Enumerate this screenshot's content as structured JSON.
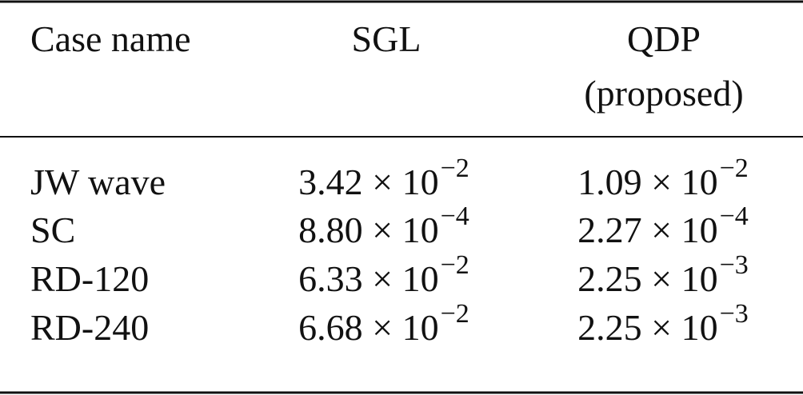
{
  "table": {
    "header": {
      "case": "Case name",
      "sgl": "SGL",
      "qdp": [
        "QDP",
        "(proposed)"
      ]
    },
    "rows": [
      {
        "name": "JW wave",
        "sgl": {
          "base": "3.42 × 10",
          "exponent": "−2"
        },
        "qdp": {
          "base": "1.09 × 10",
          "exponent": "−2"
        }
      },
      {
        "name": "SC",
        "sgl": {
          "base": "8.80 × 10",
          "exponent": "−4"
        },
        "qdp": {
          "base": "2.27 × 10",
          "exponent": "−4"
        }
      },
      {
        "name": "RD-120",
        "sgl": {
          "base": "6.33 × 10",
          "exponent": "−2"
        },
        "qdp": {
          "base": "2.25 × 10",
          "exponent": "−3"
        }
      },
      {
        "name": "RD-240",
        "sgl": {
          "base": "6.68 × 10",
          "exponent": "−2"
        },
        "qdp": {
          "base": "2.25 × 10",
          "exponent": "−3"
        }
      }
    ]
  }
}
